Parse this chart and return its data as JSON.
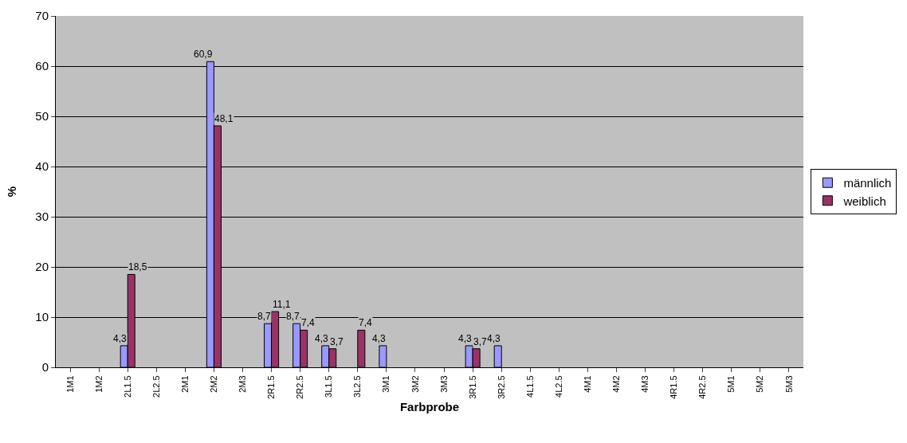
{
  "chart_data": {
    "type": "bar",
    "xlabel": "Farbprobe",
    "ylabel": "%",
    "categories": [
      "1M1",
      "1M2",
      "2L1.5",
      "2L2.5",
      "2M1",
      "2M2",
      "2M3",
      "2R1.5",
      "2R2.5",
      "3L1.5",
      "3L2.5",
      "3M1",
      "3M2",
      "3M3",
      "3R1.5",
      "3R2.5",
      "4L1.5",
      "4L2.5",
      "4M1",
      "4M2",
      "4M3",
      "4R1.5",
      "4R2.5",
      "5M1",
      "5M2",
      "5M3"
    ],
    "series": [
      {
        "name": "männlich",
        "color": "#9999ff",
        "values": [
          null,
          null,
          4.3,
          null,
          null,
          60.9,
          null,
          8.7,
          8.7,
          4.3,
          null,
          4.3,
          null,
          null,
          4.3,
          4.3,
          null,
          null,
          null,
          null,
          null,
          null,
          null,
          null,
          null,
          null
        ],
        "value_labels": [
          null,
          null,
          "4,3",
          null,
          null,
          "60,9",
          null,
          "8,7",
          "8,7",
          "4,3",
          null,
          "4,3",
          null,
          null,
          "4,3",
          "4,3",
          null,
          null,
          null,
          null,
          null,
          null,
          null,
          null,
          null,
          null
        ]
      },
      {
        "name": "weiblich",
        "color": "#993366",
        "values": [
          null,
          null,
          18.5,
          null,
          null,
          48.1,
          null,
          11.1,
          7.4,
          3.7,
          7.4,
          null,
          null,
          null,
          3.7,
          null,
          null,
          null,
          null,
          null,
          null,
          null,
          null,
          null,
          null,
          null
        ],
        "value_labels": [
          null,
          null,
          "18,5",
          null,
          null,
          "48,1",
          null,
          "11,1",
          "7,4",
          "3,7",
          "7,4",
          null,
          null,
          null,
          "3,7",
          null,
          null,
          null,
          null,
          null,
          null,
          null,
          null,
          null,
          null,
          null
        ]
      }
    ],
    "ylim": [
      0,
      70
    ],
    "yticks": [
      0,
      10,
      20,
      30,
      40,
      50,
      60,
      70
    ],
    "grid": "y",
    "legend": "right"
  }
}
